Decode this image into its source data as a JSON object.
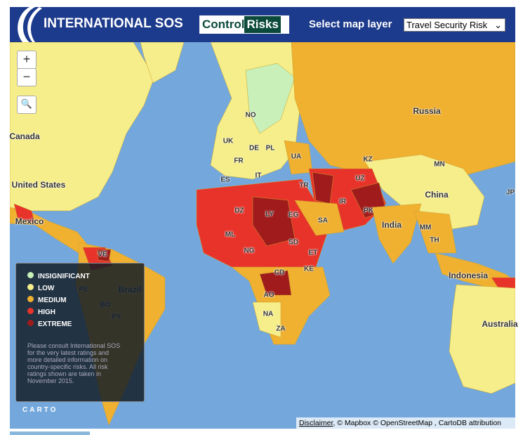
{
  "header": {
    "brand": "INTERNATIONAL SOS",
    "partner_left": "Control",
    "partner_right": "Risks",
    "layer_label": "Select map layer",
    "layer_value": "Travel Security Risk"
  },
  "zoom": {
    "in": "+",
    "out": "−"
  },
  "map_labels": [
    "Canada",
    "United States",
    "Mexico",
    "Brazil",
    "Russia",
    "China",
    "India",
    "Indonesia",
    "Australia",
    "NO",
    "UK",
    "DE",
    "PL",
    "UA",
    "FR",
    "IT",
    "ES",
    "TR",
    "KZ",
    "UZ",
    "MN",
    "JP",
    "IR",
    "PK",
    "DZ",
    "LY",
    "EG",
    "SA",
    "ML",
    "NG",
    "SD",
    "ET",
    "VE",
    "MM",
    "TH",
    "CD",
    "KE",
    "AO",
    "NA",
    "ZA",
    "PE",
    "BO",
    "PY"
  ],
  "legend": {
    "items": [
      "INSIGNIFICANT",
      "LOW",
      "MEDIUM",
      "HIGH",
      "EXTREME"
    ],
    "note": [
      "Please consult International SOS",
      "for the very latest ratings and",
      "more detailed information on",
      "country-specific risks. All risk",
      "ratings shown are taken in",
      "November 2015."
    ],
    "logo": "CARTO"
  },
  "attribution": {
    "link": "Disclaimer",
    "text": ", © Mapbox © OpenStreetMap , CartoDB attribution"
  }
}
